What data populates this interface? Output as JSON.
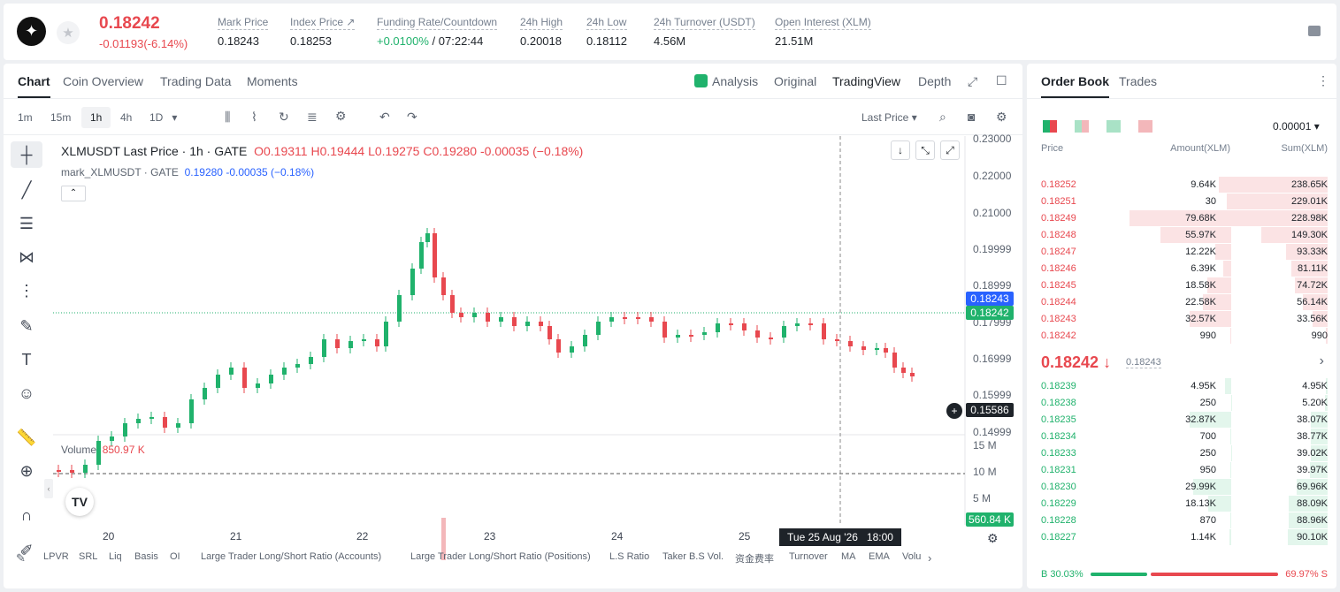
{
  "header": {
    "symbol_icon": "stellar-icon",
    "price": "0.18242",
    "change": "-0.01193(-6.14%)",
    "stats": [
      {
        "label": "Mark Price",
        "value": "0.18243"
      },
      {
        "label": "Index Price ↗",
        "value": "0.18253"
      },
      {
        "label": "Funding Rate/Countdown",
        "rate": "+0.0100%",
        "countdown": "/ 07:22:44"
      },
      {
        "label": "24h High",
        "value": "0.20018"
      },
      {
        "label": "24h Low",
        "value": "0.18112"
      },
      {
        "label": "24h Turnover (USDT)",
        "value": "4.56M"
      },
      {
        "label": "Open Interest (XLM)",
        "value": "21.51M"
      }
    ]
  },
  "chart_tabs": [
    "Chart",
    "Coin Overview",
    "Trading Data",
    "Moments"
  ],
  "view_tabs": [
    "Analysis",
    "Original",
    "TradingView",
    "Depth"
  ],
  "intervals": [
    "1m",
    "15m",
    "1h",
    "4h",
    "1D"
  ],
  "price_type": "Last Price",
  "legend": {
    "title": "XLMUSDT Last Price · 1h · GATE",
    "o": "O0.19311",
    "h": "H0.19444",
    "l": "L0.19275",
    "c": "C0.19280",
    "chg": "-0.00035 (−0.18%)",
    "mark_label": "mark_XLMUSDT · GATE",
    "mark_val": "0.19280",
    "mark_chg": "-0.00035 (−0.18%)",
    "volume_label": "Volume",
    "volume_val": "850.97 K"
  },
  "y_ticks": [
    "0.23000",
    "0.22000",
    "0.21000",
    "0.19999",
    "0.18999",
    "0.17999",
    "0.16999",
    "0.15999",
    "0.14999"
  ],
  "vol_ticks": [
    "15 M",
    "10 M",
    "5 M"
  ],
  "x_ticks": [
    "20",
    "21",
    "22",
    "23",
    "24",
    "25"
  ],
  "tags": {
    "mark": "0.18243",
    "last": "0.15586",
    "close": "0.18242",
    "vol": "560.84 K",
    "crosshair_time": "Tue 25 Aug '26   18:00"
  },
  "indicators": [
    "LPVR",
    "SRL",
    "Liq",
    "Basis",
    "OI",
    "Large Trader Long/Short Ratio (Accounts)",
    "Large Trader Long/Short Ratio (Positions)",
    "L.S Ratio",
    "Taker B.S Vol.",
    "资金费率",
    "Turnover",
    "MA",
    "EMA",
    "Volu"
  ],
  "colors": {
    "up": "#20b26c",
    "down": "#e8484f"
  },
  "chart_data": {
    "type": "candlestick",
    "symbol": "XLMUSDT",
    "interval": "1h",
    "ylim": [
      0.14999,
      0.23
    ],
    "x": [
      "20",
      "21",
      "22",
      "23",
      "24",
      "25"
    ]
  },
  "orderbook": {
    "tabs": [
      "Order Book",
      "Trades"
    ],
    "precision": "0.00001",
    "headers": [
      "Price",
      "Amount(XLM)",
      "Sum(XLM)"
    ],
    "asks": [
      [
        "0.18252",
        "9.64K",
        "238.65K"
      ],
      [
        "0.18251",
        "30",
        "229.01K"
      ],
      [
        "0.18249",
        "79.68K",
        "228.98K"
      ],
      [
        "0.18248",
        "55.97K",
        "149.30K"
      ],
      [
        "0.18247",
        "12.22K",
        "93.33K"
      ],
      [
        "0.18246",
        "6.39K",
        "81.11K"
      ],
      [
        "0.18245",
        "18.58K",
        "74.72K"
      ],
      [
        "0.18244",
        "22.58K",
        "56.14K"
      ],
      [
        "0.18243",
        "32.57K",
        "33.56K"
      ],
      [
        "0.18242",
        "990",
        "990"
      ]
    ],
    "mid": "0.18242",
    "mid_mark": "0.18243",
    "bids": [
      [
        "0.18239",
        "4.95K",
        "4.95K"
      ],
      [
        "0.18238",
        "250",
        "5.20K"
      ],
      [
        "0.18235",
        "32.87K",
        "38.07K"
      ],
      [
        "0.18234",
        "700",
        "38.77K"
      ],
      [
        "0.18233",
        "250",
        "39.02K"
      ],
      [
        "0.18231",
        "950",
        "39.97K"
      ],
      [
        "0.18230",
        "29.99K",
        "69.96K"
      ],
      [
        "0.18229",
        "18.13K",
        "88.09K"
      ],
      [
        "0.18228",
        "870",
        "88.96K"
      ],
      [
        "0.18227",
        "1.14K",
        "90.10K"
      ]
    ],
    "buy_pct": "B 30.03%",
    "sell_pct": "69.97% S"
  }
}
